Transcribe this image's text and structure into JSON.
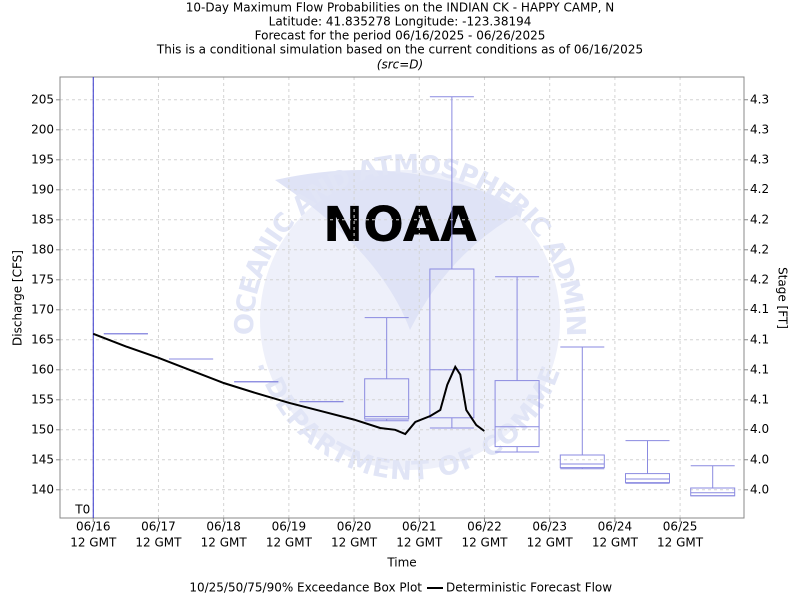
{
  "chart_data": {
    "type": "box",
    "title": [
      "10-Day Maximum Flow Probabilities on the INDIAN CK - HAPPY CAMP, N",
      "Latitude: 41.835278 Longitude: -123.38194",
      "Forecast for the period 06/16/2025 - 06/26/2025",
      "This is a conditional simulation based on the current conditions as of 06/16/2025"
    ],
    "subtitle": "(src=D)",
    "xlabel": "Time",
    "ylabel": "Discharge [CFS]",
    "y2label": "Stage [FT]",
    "watermark": {
      "logo": "NOAA",
      "top": "NATIONAL OCEANIC AND ATMOSPHERIC ADMINISTRATION",
      "bottom": "U.S. DEPARTMENT OF COMMERCE"
    },
    "xlim": [
      15.99,
      26.48
    ],
    "xticks": [
      {
        "value": 16.5,
        "label": "06/16",
        "sublabel": "12 GMT"
      },
      {
        "value": 17.5,
        "label": "06/17",
        "sublabel": "12 GMT"
      },
      {
        "value": 18.5,
        "label": "06/18",
        "sublabel": "12 GMT"
      },
      {
        "value": 19.5,
        "label": "06/19",
        "sublabel": "12 GMT"
      },
      {
        "value": 20.5,
        "label": "06/20",
        "sublabel": "12 GMT"
      },
      {
        "value": 21.5,
        "label": "06/21",
        "sublabel": "12 GMT"
      },
      {
        "value": 22.5,
        "label": "06/22",
        "sublabel": "12 GMT"
      },
      {
        "value": 23.5,
        "label": "06/23",
        "sublabel": "12 GMT"
      },
      {
        "value": 24.5,
        "label": "06/24",
        "sublabel": "12 GMT"
      },
      {
        "value": 25.5,
        "label": "06/25",
        "sublabel": "12 GMT"
      }
    ],
    "ylim": [
      135.3,
      208.8
    ],
    "yticks": [
      140,
      145,
      150,
      155,
      160,
      165,
      170,
      175,
      180,
      185,
      190,
      195,
      200,
      205
    ],
    "y2lim": [
      3.9783,
      4.3175
    ],
    "y2ticks": [
      {
        "value": 4.0,
        "label": "4.0"
      },
      {
        "value": 4.0231,
        "label": "4.0"
      },
      {
        "value": 4.0462,
        "label": "4.0"
      },
      {
        "value": 4.0692,
        "label": "4.1"
      },
      {
        "value": 4.0923,
        "label": "4.1"
      },
      {
        "value": 4.1154,
        "label": "4.1"
      },
      {
        "value": 4.1385,
        "label": "4.1"
      },
      {
        "value": 4.1615,
        "label": "4.2"
      },
      {
        "value": 4.1846,
        "label": "4.2"
      },
      {
        "value": 4.2077,
        "label": "4.2"
      },
      {
        "value": 4.2308,
        "label": "4.2"
      },
      {
        "value": 4.2538,
        "label": "4.3"
      },
      {
        "value": 4.2769,
        "label": "4.3"
      },
      {
        "value": 4.3,
        "label": "4.3"
      }
    ],
    "grid": true,
    "annotations": [
      {
        "text": "T0",
        "x": 16.5,
        "color": "#3333cc"
      }
    ],
    "series": [
      {
        "name": "10/25/50/75/90% Exceedance Box Plot",
        "type": "box",
        "color": "#8a8ae0",
        "x": [
          17,
          18,
          19,
          20,
          21,
          22,
          23,
          24,
          25,
          26
        ],
        "p10": [
          166,
          161.8,
          158,
          154.7,
          151.5,
          150.3,
          146.3,
          143.5,
          141.1,
          139
        ],
        "p25": [
          166,
          161.8,
          158,
          154.7,
          151.8,
          152,
          147.2,
          143.7,
          141.2,
          139
        ],
        "p50": [
          166,
          161.8,
          158,
          154.7,
          152.2,
          160,
          150.5,
          144.3,
          141.8,
          139.5
        ],
        "p75": [
          166,
          161.8,
          158,
          154.7,
          158.5,
          176.8,
          158.2,
          145.8,
          142.7,
          140.3
        ],
        "p90": [
          166,
          161.8,
          158,
          154.7,
          168.7,
          205.5,
          175.5,
          163.8,
          148.2,
          144
        ]
      },
      {
        "name": "Deterministic Forecast Flow",
        "type": "line",
        "color": "#000000",
        "x": [
          16.5,
          17.0,
          17.5,
          18.0,
          18.5,
          19.0,
          19.5,
          20.0,
          20.5,
          20.9,
          21.13,
          21.285,
          21.439,
          21.669,
          21.822,
          21.929,
          22.052,
          22.129,
          22.221,
          22.374,
          22.497
        ],
        "values": [
          166,
          163.9,
          162,
          159.9,
          157.8,
          156.1,
          154.5,
          153.1,
          151.7,
          150.3,
          150.0,
          149.3,
          151.3,
          152.3,
          153.3,
          157.5,
          160.5,
          159.2,
          153.3,
          150.8,
          149.8
        ]
      }
    ]
  }
}
